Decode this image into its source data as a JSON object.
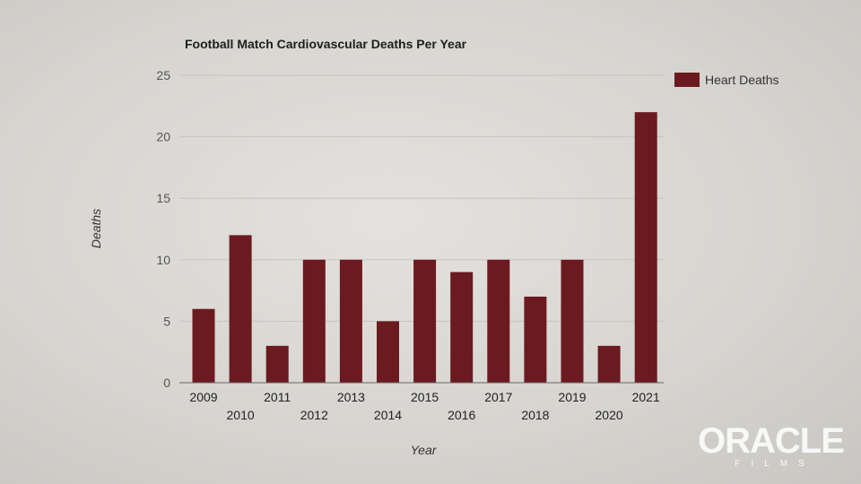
{
  "chart_data": {
    "type": "bar",
    "title": "Football Match Cardiovascular Deaths Per Year",
    "xlabel": "Year",
    "ylabel": "Deaths",
    "categories": [
      "2009",
      "2010",
      "2011",
      "2012",
      "2013",
      "2014",
      "2015",
      "2016",
      "2017",
      "2018",
      "2019",
      "2020",
      "2021"
    ],
    "series": [
      {
        "name": "Heart Deaths",
        "values": [
          6,
          12,
          3,
          10,
          10,
          5,
          10,
          9,
          10,
          7,
          10,
          3,
          22
        ],
        "color": "#6b1a20"
      }
    ],
    "ylim": [
      0,
      25
    ],
    "yticks": [
      "0",
      "5",
      "10",
      "15",
      "20",
      "25"
    ],
    "grid": true,
    "legend_position": "top-right"
  },
  "watermark": {
    "main": "ORACLE",
    "sub": "FILMS"
  }
}
